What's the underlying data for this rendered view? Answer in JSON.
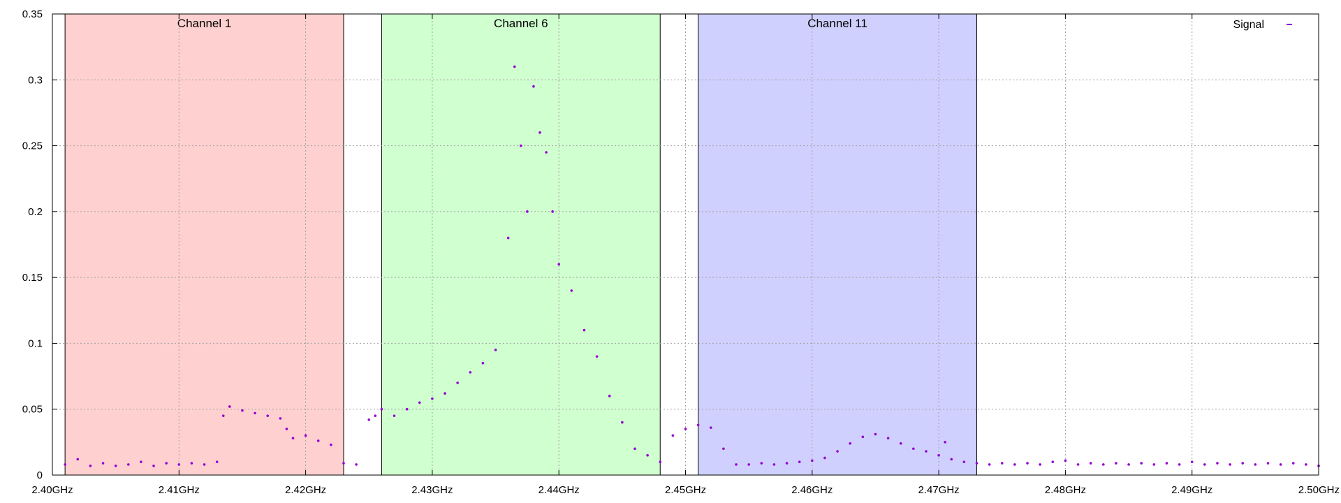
{
  "chart_data": {
    "type": "scatter",
    "title": "",
    "xlabel": "",
    "ylabel": "",
    "xlim": [
      2.4,
      2.5
    ],
    "ylim": [
      0,
      0.35
    ],
    "grid": true,
    "legend_position": "top-right",
    "x_ticks": [
      {
        "value": 2.4,
        "label": "2.40GHz"
      },
      {
        "value": 2.41,
        "label": "2.41GHz"
      },
      {
        "value": 2.42,
        "label": "2.42GHz"
      },
      {
        "value": 2.43,
        "label": "2.43GHz"
      },
      {
        "value": 2.44,
        "label": "2.44GHz"
      },
      {
        "value": 2.45,
        "label": "2.45GHz"
      },
      {
        "value": 2.46,
        "label": "2.46GHz"
      },
      {
        "value": 2.47,
        "label": "2.47GHz"
      },
      {
        "value": 2.48,
        "label": "2.48GHz"
      },
      {
        "value": 2.49,
        "label": "2.49GHz"
      },
      {
        "value": 2.5,
        "label": "2.50GHz"
      }
    ],
    "y_ticks": [
      {
        "value": 0,
        "label": "0"
      },
      {
        "value": 0.05,
        "label": "0.05"
      },
      {
        "value": 0.1,
        "label": "0.1"
      },
      {
        "value": 0.15,
        "label": "0.15"
      },
      {
        "value": 0.2,
        "label": "0.2"
      },
      {
        "value": 0.25,
        "label": "0.25"
      },
      {
        "value": 0.3,
        "label": "0.3"
      },
      {
        "value": 0.35,
        "label": "0.35"
      }
    ],
    "channels": [
      {
        "label": "Channel 1",
        "x_start": 2.401,
        "x_end": 2.423,
        "color": "#ffd0d0"
      },
      {
        "label": "Channel 6",
        "x_start": 2.426,
        "x_end": 2.448,
        "color": "#d0ffd0"
      },
      {
        "label": "Channel 11",
        "x_start": 2.451,
        "x_end": 2.473,
        "color": "#d0d0ff"
      }
    ],
    "series": [
      {
        "name": "Signal",
        "color": "#9400d3",
        "points": [
          [
            2.401,
            0.008
          ],
          [
            2.402,
            0.012
          ],
          [
            2.403,
            0.007
          ],
          [
            2.404,
            0.009
          ],
          [
            2.405,
            0.007
          ],
          [
            2.406,
            0.008
          ],
          [
            2.407,
            0.01
          ],
          [
            2.408,
            0.007
          ],
          [
            2.409,
            0.009
          ],
          [
            2.41,
            0.008
          ],
          [
            2.411,
            0.009
          ],
          [
            2.412,
            0.008
          ],
          [
            2.413,
            0.01
          ],
          [
            2.4135,
            0.045
          ],
          [
            2.414,
            0.052
          ],
          [
            2.415,
            0.049
          ],
          [
            2.416,
            0.047
          ],
          [
            2.417,
            0.045
          ],
          [
            2.418,
            0.043
          ],
          [
            2.4185,
            0.035
          ],
          [
            2.419,
            0.028
          ],
          [
            2.42,
            0.03
          ],
          [
            2.421,
            0.026
          ],
          [
            2.422,
            0.023
          ],
          [
            2.423,
            0.009
          ],
          [
            2.424,
            0.008
          ],
          [
            2.425,
            0.042
          ],
          [
            2.4255,
            0.045
          ],
          [
            2.426,
            0.05
          ],
          [
            2.427,
            0.045
          ],
          [
            2.428,
            0.05
          ],
          [
            2.429,
            0.055
          ],
          [
            2.43,
            0.058
          ],
          [
            2.431,
            0.062
          ],
          [
            2.432,
            0.07
          ],
          [
            2.433,
            0.078
          ],
          [
            2.434,
            0.085
          ],
          [
            2.435,
            0.095
          ],
          [
            2.436,
            0.18
          ],
          [
            2.4365,
            0.31
          ],
          [
            2.437,
            0.25
          ],
          [
            2.4375,
            0.2
          ],
          [
            2.438,
            0.295
          ],
          [
            2.4385,
            0.26
          ],
          [
            2.439,
            0.245
          ],
          [
            2.4395,
            0.2
          ],
          [
            2.44,
            0.16
          ],
          [
            2.441,
            0.14
          ],
          [
            2.442,
            0.11
          ],
          [
            2.443,
            0.09
          ],
          [
            2.444,
            0.06
          ],
          [
            2.445,
            0.04
          ],
          [
            2.446,
            0.02
          ],
          [
            2.447,
            0.015
          ],
          [
            2.448,
            0.01
          ],
          [
            2.449,
            0.03
          ],
          [
            2.45,
            0.035
          ],
          [
            2.451,
            0.038
          ],
          [
            2.452,
            0.036
          ],
          [
            2.453,
            0.02
          ],
          [
            2.454,
            0.008
          ],
          [
            2.455,
            0.008
          ],
          [
            2.456,
            0.009
          ],
          [
            2.457,
            0.008
          ],
          [
            2.458,
            0.009
          ],
          [
            2.459,
            0.01
          ],
          [
            2.46,
            0.011
          ],
          [
            2.461,
            0.013
          ],
          [
            2.462,
            0.018
          ],
          [
            2.463,
            0.024
          ],
          [
            2.464,
            0.029
          ],
          [
            2.465,
            0.031
          ],
          [
            2.466,
            0.028
          ],
          [
            2.467,
            0.024
          ],
          [
            2.468,
            0.02
          ],
          [
            2.469,
            0.018
          ],
          [
            2.47,
            0.015
          ],
          [
            2.4705,
            0.025
          ],
          [
            2.471,
            0.012
          ],
          [
            2.472,
            0.01
          ],
          [
            2.473,
            0.009
          ],
          [
            2.474,
            0.008
          ],
          [
            2.475,
            0.009
          ],
          [
            2.476,
            0.008
          ],
          [
            2.477,
            0.009
          ],
          [
            2.478,
            0.008
          ],
          [
            2.479,
            0.01
          ],
          [
            2.48,
            0.011
          ],
          [
            2.481,
            0.008
          ],
          [
            2.482,
            0.009
          ],
          [
            2.483,
            0.008
          ],
          [
            2.484,
            0.009
          ],
          [
            2.485,
            0.008
          ],
          [
            2.486,
            0.009
          ],
          [
            2.487,
            0.008
          ],
          [
            2.488,
            0.009
          ],
          [
            2.489,
            0.008
          ],
          [
            2.49,
            0.01
          ],
          [
            2.491,
            0.008
          ],
          [
            2.492,
            0.009
          ],
          [
            2.493,
            0.008
          ],
          [
            2.494,
            0.009
          ],
          [
            2.495,
            0.008
          ],
          [
            2.496,
            0.009
          ],
          [
            2.497,
            0.008
          ],
          [
            2.498,
            0.009
          ],
          [
            2.499,
            0.008
          ],
          [
            2.5,
            0.007
          ]
        ]
      }
    ]
  }
}
